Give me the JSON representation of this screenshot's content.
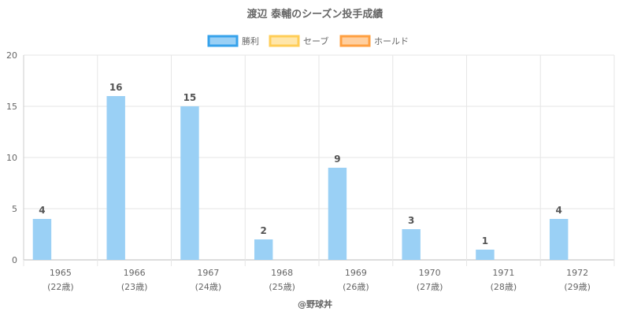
{
  "chart_data": {
    "type": "bar",
    "title": "渡辺 泰輔のシーズン投手成績",
    "categories": [
      "1965",
      "1966",
      "1967",
      "1968",
      "1969",
      "1970",
      "1971",
      "1972"
    ],
    "category_sublabels": [
      "(22歳)",
      "(23歳)",
      "(24歳)",
      "(25歳)",
      "(26歳)",
      "(27歳)",
      "(28歳)",
      "(29歳)"
    ],
    "series": [
      {
        "name": "勝利",
        "values": [
          4,
          16,
          15,
          2,
          9,
          3,
          1,
          4
        ],
        "fill": "#9ad0f5",
        "border": "#36a2eb"
      },
      {
        "name": "セーブ",
        "values": [
          0,
          0,
          0,
          0,
          0,
          0,
          0,
          0
        ],
        "fill": "#ffe6aa",
        "border": "#ffcd56"
      },
      {
        "name": "ホールド",
        "values": [
          0,
          0,
          0,
          0,
          0,
          0,
          0,
          0
        ],
        "fill": "#ffcf9f",
        "border": "#ff9f40"
      }
    ],
    "ylim": [
      0,
      20
    ],
    "yticks": [
      0,
      5,
      10,
      15,
      20
    ],
    "grid": true,
    "legend_position": "top",
    "data_labels_series": 0
  },
  "footer": {
    "credit": "@野球丼"
  }
}
